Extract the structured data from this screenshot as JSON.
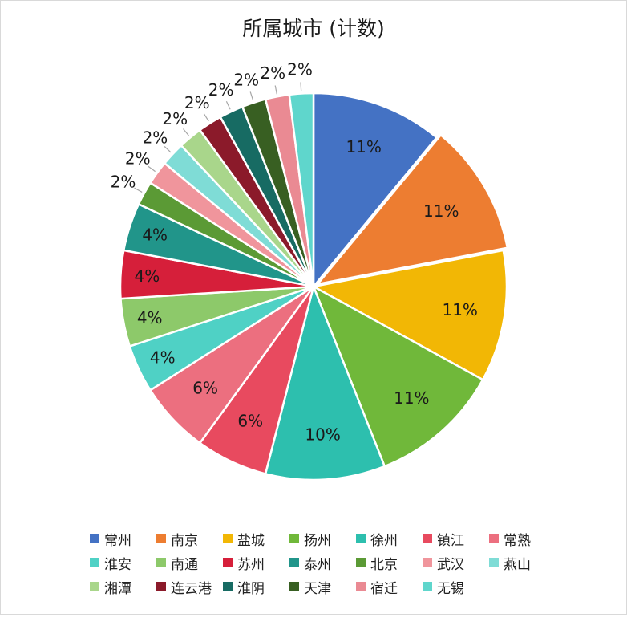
{
  "chart_data": {
    "type": "pie",
    "title": "所属城市 (计数)",
    "labels_format": "percent",
    "legend_position": "bottom",
    "slices": [
      {
        "name": "常州",
        "value": 11,
        "label": "11%",
        "color": "#4472c4"
      },
      {
        "name": "南京",
        "value": 11,
        "label": "11%",
        "color": "#ed7d31"
      },
      {
        "name": "盐城",
        "value": 11,
        "label": "11%",
        "color": "#f2b705"
      },
      {
        "name": "扬州",
        "value": 11,
        "label": "11%",
        "color": "#70b83a"
      },
      {
        "name": "徐州",
        "value": 10,
        "label": "10%",
        "color": "#2dbfae"
      },
      {
        "name": "镇江",
        "value": 6,
        "label": "6%",
        "color": "#e84a5f"
      },
      {
        "name": "常熟",
        "value": 6,
        "label": "6%",
        "color": "#ec6f7f"
      },
      {
        "name": "淮安",
        "value": 4,
        "label": "4%",
        "color": "#4fd1c5"
      },
      {
        "name": "南通",
        "value": 4,
        "label": "4%",
        "color": "#8dc96a"
      },
      {
        "name": "苏州",
        "value": 4,
        "label": "4%",
        "color": "#d61f3a"
      },
      {
        "name": "泰州",
        "value": 4,
        "label": "4%",
        "color": "#21958a"
      },
      {
        "name": "北京",
        "value": 2,
        "label": "2%",
        "color": "#5b9a35"
      },
      {
        "name": "武汉",
        "value": 2,
        "label": "2%",
        "color": "#f0959c"
      },
      {
        "name": "燕山",
        "value": 2,
        "label": "2%",
        "color": "#7fdcd6"
      },
      {
        "name": "湘潭",
        "value": 2,
        "label": "2%",
        "color": "#a9d68b"
      },
      {
        "name": "连云港",
        "value": 2,
        "label": "2%",
        "color": "#8b1a2a"
      },
      {
        "name": "淮阴",
        "value": 2,
        "label": "2%",
        "color": "#176b63"
      },
      {
        "name": "天津",
        "value": 2,
        "label": "2%",
        "color": "#385f22"
      },
      {
        "name": "宿迁",
        "value": 2,
        "label": "2%",
        "color": "#ea8a93"
      },
      {
        "name": "无锡",
        "value": 2,
        "label": "2%",
        "color": "#5fd6cc"
      }
    ]
  }
}
